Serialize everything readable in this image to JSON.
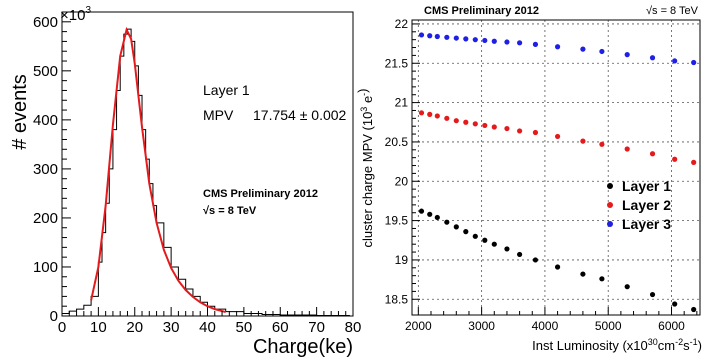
{
  "chart_data": [
    {
      "type": "histogram",
      "xlabel": "Charge(ke)",
      "ylabel": "# events",
      "y_multiplier_label": "×10",
      "y_multiplier_exp": "3",
      "xlim": [
        0,
        80
      ],
      "ylim": [
        0,
        620
      ],
      "x_ticks": [
        "0",
        "10",
        "20",
        "30",
        "40",
        "50",
        "60",
        "70",
        "80"
      ],
      "y_ticks": [
        "0",
        "100",
        "200",
        "300",
        "400",
        "500",
        "600"
      ],
      "grid": false,
      "annotation_layer": "Layer 1",
      "annotation_mpv_label": "MPV",
      "annotation_mpv_value": "17.754 ± 0.002",
      "label_prelim": "CMS Preliminary 2012",
      "label_energy": "√s = 8 TeV",
      "histogram_color": "#000000",
      "fit_color": "#e41a1c",
      "bins": [
        [
          0,
          5
        ],
        [
          2,
          10
        ],
        [
          4,
          14
        ],
        [
          6,
          22
        ],
        [
          8,
          40
        ],
        [
          10,
          110
        ],
        [
          11,
          170
        ],
        [
          12,
          230
        ],
        [
          13,
          300
        ],
        [
          14,
          380
        ],
        [
          15,
          460
        ],
        [
          16,
          530
        ],
        [
          17,
          575
        ],
        [
          18,
          585
        ],
        [
          19,
          560
        ],
        [
          20,
          510
        ],
        [
          21,
          450
        ],
        [
          22,
          380
        ],
        [
          23,
          320
        ],
        [
          24,
          270
        ],
        [
          25,
          225
        ],
        [
          26,
          190
        ],
        [
          28,
          140
        ],
        [
          30,
          100
        ],
        [
          32,
          75
        ],
        [
          34,
          55
        ],
        [
          36,
          40
        ],
        [
          38,
          28
        ],
        [
          40,
          20
        ],
        [
          42,
          14
        ],
        [
          45,
          9
        ],
        [
          50,
          5
        ],
        [
          55,
          3
        ],
        [
          60,
          2
        ],
        [
          70,
          1
        ],
        [
          79,
          0
        ]
      ],
      "fit": [
        [
          8,
          32
        ],
        [
          10,
          100
        ],
        [
          12,
          225
        ],
        [
          14,
          390
        ],
        [
          16,
          530
        ],
        [
          17.754,
          584
        ],
        [
          19,
          565
        ],
        [
          20,
          515
        ],
        [
          22,
          385
        ],
        [
          24,
          270
        ],
        [
          26,
          190
        ],
        [
          28,
          135
        ],
        [
          30,
          98
        ],
        [
          32,
          72
        ],
        [
          34,
          53
        ],
        [
          36,
          39
        ],
        [
          38,
          28
        ],
        [
          40,
          20
        ],
        [
          42,
          14
        ],
        [
          44,
          10
        ],
        [
          45,
          8
        ]
      ]
    },
    {
      "type": "scatter",
      "title": "CMS Preliminary 2012",
      "energy_label": "√s = 8 TeV",
      "xlabel": "Inst Luminosity (x10",
      "xlabel_parts": [
        "Inst Luminosity (x10",
        "30",
        "cm",
        "-2",
        "s",
        "-1",
        ")"
      ],
      "ylabel_parts": [
        "cluster charge MPV (10",
        "3",
        " e",
        "-",
        ")"
      ],
      "xlim": [
        1900,
        6450
      ],
      "ylim": [
        18.3,
        22.05
      ],
      "x_ticks": [
        "2000",
        "3000",
        "4000",
        "5000",
        "6000"
      ],
      "y_ticks": [
        "18.5",
        "19",
        "19.5",
        "20",
        "20.5",
        "21",
        "21.5",
        "22"
      ],
      "grid": true,
      "legend_position": "bottom-right",
      "series": [
        {
          "name": "Layer 1",
          "color": "#000000",
          "points": [
            [
              2050,
              19.62
            ],
            [
              2180,
              19.58
            ],
            [
              2300,
              19.54
            ],
            [
              2450,
              19.48
            ],
            [
              2600,
              19.42
            ],
            [
              2750,
              19.36
            ],
            [
              2900,
              19.3
            ],
            [
              3050,
              19.25
            ],
            [
              3200,
              19.2
            ],
            [
              3400,
              19.14
            ],
            [
              3600,
              19.07
            ],
            [
              3850,
              19.0
            ],
            [
              4200,
              18.91
            ],
            [
              4600,
              18.82
            ],
            [
              4900,
              18.76
            ],
            [
              5300,
              18.66
            ],
            [
              5700,
              18.56
            ],
            [
              6050,
              18.44
            ],
            [
              6350,
              18.37
            ]
          ]
        },
        {
          "name": "Layer 2",
          "color": "#e41a1c",
          "points": [
            [
              2050,
              20.87
            ],
            [
              2180,
              20.85
            ],
            [
              2300,
              20.83
            ],
            [
              2450,
              20.8
            ],
            [
              2600,
              20.77
            ],
            [
              2750,
              20.75
            ],
            [
              2900,
              20.73
            ],
            [
              3050,
              20.71
            ],
            [
              3200,
              20.69
            ],
            [
              3400,
              20.67
            ],
            [
              3600,
              20.64
            ],
            [
              3850,
              20.62
            ],
            [
              4200,
              20.57
            ],
            [
              4600,
              20.51
            ],
            [
              4900,
              20.47
            ],
            [
              5300,
              20.41
            ],
            [
              5700,
              20.35
            ],
            [
              6050,
              20.28
            ],
            [
              6350,
              20.24
            ]
          ]
        },
        {
          "name": "Layer 3",
          "color": "#1f1fe6",
          "points": [
            [
              2050,
              21.86
            ],
            [
              2180,
              21.85
            ],
            [
              2300,
              21.84
            ],
            [
              2450,
              21.83
            ],
            [
              2600,
              21.82
            ],
            [
              2750,
              21.81
            ],
            [
              2900,
              21.8
            ],
            [
              3050,
              21.79
            ],
            [
              3200,
              21.78
            ],
            [
              3400,
              21.77
            ],
            [
              3600,
              21.76
            ],
            [
              3850,
              21.74
            ],
            [
              4200,
              21.71
            ],
            [
              4600,
              21.68
            ],
            [
              4900,
              21.65
            ],
            [
              5300,
              21.61
            ],
            [
              5700,
              21.57
            ],
            [
              6050,
              21.53
            ],
            [
              6350,
              21.51
            ]
          ]
        }
      ]
    }
  ]
}
